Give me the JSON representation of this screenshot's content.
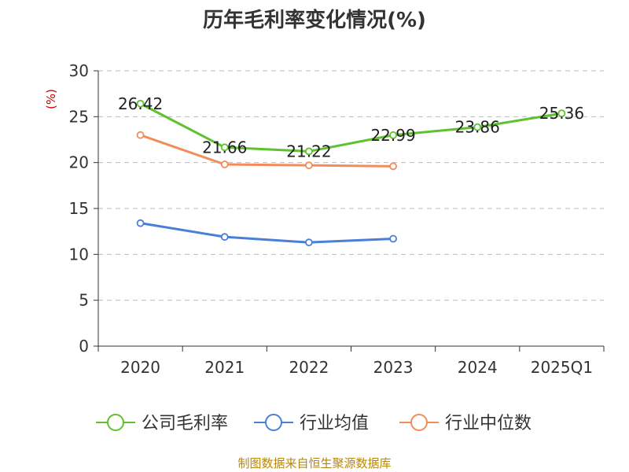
{
  "chart_data": {
    "type": "line",
    "title": "历年毛利率变化情况(%)",
    "ylabel": "(%)",
    "categories": [
      "2020",
      "2021",
      "2022",
      "2023",
      "2024",
      "2025Q1"
    ],
    "yticks": [
      "0",
      "5",
      "10",
      "15",
      "20",
      "25",
      "30"
    ],
    "ylim": [
      0,
      30
    ],
    "grid": true,
    "legend_position": "bottom",
    "series": [
      {
        "name": "公司毛利率",
        "color": "#5dc22c",
        "values": [
          26.42,
          21.66,
          21.22,
          22.99,
          23.86,
          25.36
        ],
        "labels": [
          "26.42",
          "21.66",
          "21.22",
          "22.99",
          "23.86",
          "25.36"
        ]
      },
      {
        "name": "行业均值",
        "color": "#4a7fd8",
        "values": [
          13.4,
          11.9,
          11.3,
          11.7,
          null,
          null
        ]
      },
      {
        "name": "行业中位数",
        "color": "#f28c5a",
        "values": [
          23.0,
          19.8,
          19.7,
          19.6,
          null,
          null
        ]
      }
    ]
  },
  "footer": {
    "source": "制图数据来自恒生聚源数据库"
  }
}
